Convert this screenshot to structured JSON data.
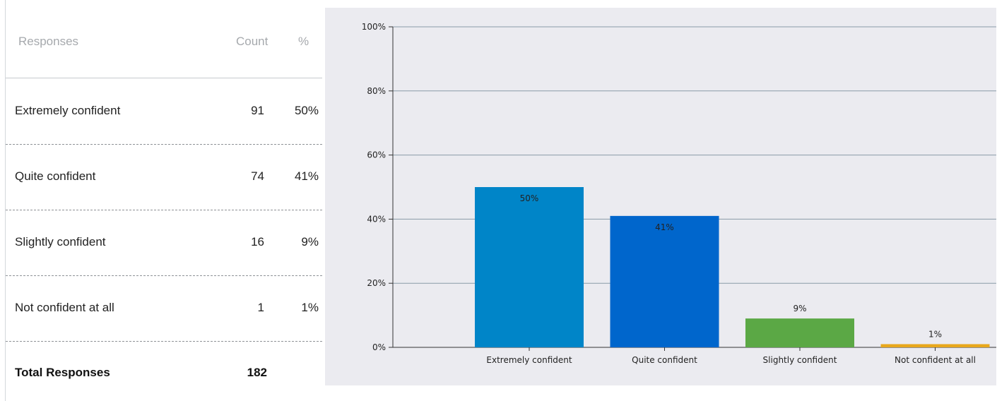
{
  "table": {
    "headers": {
      "responses": "Responses",
      "count": "Count",
      "percent": "%"
    },
    "rows": [
      {
        "label": "Extremely confident",
        "count": "91",
        "percent": "50%"
      },
      {
        "label": "Quite confident",
        "count": "74",
        "percent": "41%"
      },
      {
        "label": "Slightly confident",
        "count": "16",
        "percent": "9%"
      },
      {
        "label": "Not confident at all",
        "count": "1",
        "percent": "1%"
      }
    ],
    "total": {
      "label": "Total Responses",
      "count": "182"
    }
  },
  "chart_data": {
    "type": "bar",
    "categories": [
      "Extremely confident",
      "Quite confident",
      "Slightly confident",
      "Not confident at all"
    ],
    "values": [
      50,
      41,
      9,
      1
    ],
    "data_labels": [
      "50%",
      "41%",
      "9%",
      "1%"
    ],
    "colors": [
      "#0085c8",
      "#0066cc",
      "#5ba845",
      "#e8a81c"
    ],
    "yticks": [
      "0%",
      "20%",
      "40%",
      "60%",
      "80%",
      "100%"
    ],
    "ylim": [
      0,
      100
    ],
    "grid": true,
    "title": "",
    "xlabel": "",
    "ylabel": ""
  }
}
